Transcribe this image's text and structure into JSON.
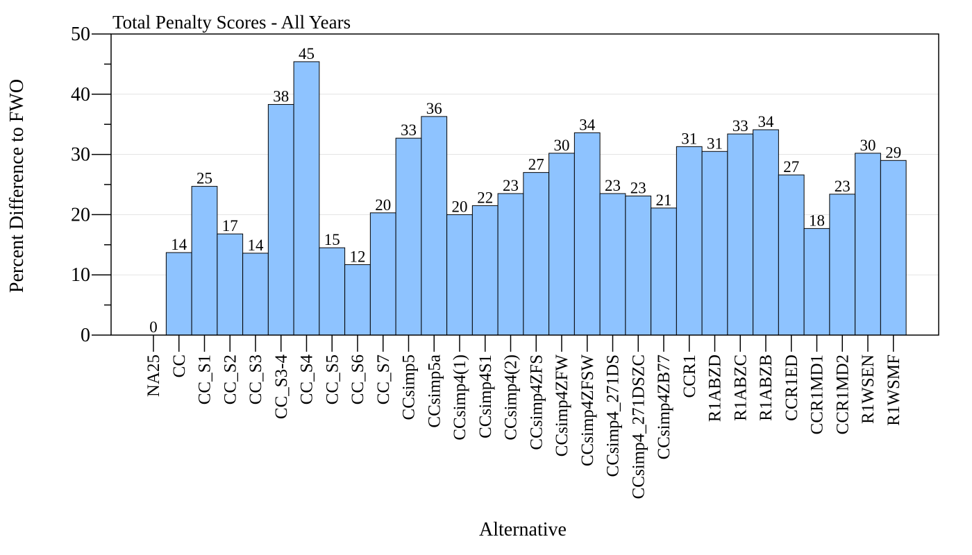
{
  "chart_data": {
    "type": "bar",
    "title": "Total Penalty Scores - All Years",
    "xlabel": "Alternative",
    "ylabel": "Percent Difference to FWO",
    "ylim": [
      0,
      50
    ],
    "yticks": [
      0,
      10,
      20,
      30,
      40,
      50
    ],
    "grid": true,
    "bar_color": "#8ec3ff",
    "categories": [
      "NA25",
      "CC",
      "CC_S1",
      "CC_S2",
      "CC_S3",
      "CC_S3-4",
      "CC_S4",
      "CC_S5",
      "CC_S6",
      "CC_S7",
      "CCsimp5",
      "CCsimp5a",
      "CCsimp4(1)",
      "CCsimp4S1",
      "CCsimp4(2)",
      "CCsimp4ZFS",
      "CCsimp4ZFW",
      "CCsimp4ZFSW",
      "CCsimp4_271DS",
      "CCsimp4_271DSZC",
      "CCsimp4ZB77",
      "CCR1",
      "R1ABZD",
      "R1ABZC",
      "R1ABZB",
      "CCR1ED",
      "CCR1MD1",
      "CCR1MD2",
      "R1WSEN",
      "R1WSMF"
    ],
    "values": [
      0,
      13.7,
      24.7,
      16.8,
      13.6,
      38.3,
      45.4,
      14.5,
      11.7,
      20.3,
      32.7,
      36.3,
      20.0,
      21.5,
      23.5,
      27.0,
      30.2,
      33.6,
      23.5,
      23.1,
      21.1,
      31.3,
      30.5,
      33.4,
      34.1,
      26.6,
      17.7,
      23.4,
      30.2,
      29.0
    ],
    "labels": [
      "0",
      "14",
      "25",
      "17",
      "14",
      "38",
      "45",
      "15",
      "12",
      "20",
      "33",
      "36",
      "20",
      "22",
      "23",
      "27",
      "30",
      "34",
      "23",
      "23",
      "21",
      "31",
      "31",
      "33",
      "34",
      "27",
      "18",
      "23",
      "30",
      "29"
    ]
  }
}
